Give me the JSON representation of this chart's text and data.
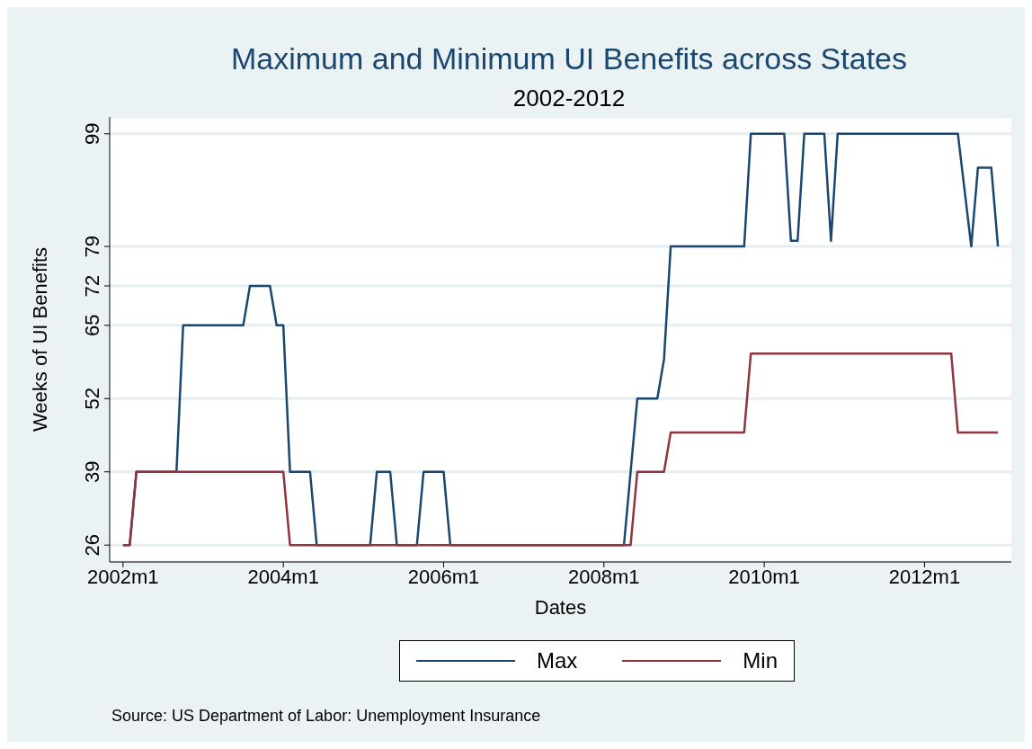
{
  "chart_data": {
    "type": "line",
    "title": "Maximum and Minimum UI Benefits across States",
    "subtitle": "2002-2012",
    "xlabel": "Dates",
    "ylabel": "Weeks of UI Benefits",
    "series": [
      {
        "name": "Max",
        "color": "#1a476f",
        "x": [
          "2002-01",
          "2002-02",
          "2002-03",
          "2002-09",
          "2002-10",
          "2003-07",
          "2003-08",
          "2003-11",
          "2003-12",
          "2004-01",
          "2004-02",
          "2004-05",
          "2004-06",
          "2005-02",
          "2005-03",
          "2005-05",
          "2005-06",
          "2005-09",
          "2005-10",
          "2006-01",
          "2006-02",
          "2008-04",
          "2008-05",
          "2008-06",
          "2008-09",
          "2008-10",
          "2008-11",
          "2009-10",
          "2009-11",
          "2010-04",
          "2010-05",
          "2010-06",
          "2010-07",
          "2010-10",
          "2010-11",
          "2010-12",
          "2012-06",
          "2012-07",
          "2012-08",
          "2012-09",
          "2012-11",
          "2012-12"
        ],
        "values": [
          26,
          26,
          39,
          39,
          65,
          65,
          72,
          72,
          65,
          65,
          39,
          39,
          26,
          26,
          39,
          39,
          26,
          26,
          39,
          39,
          26,
          26,
          39,
          52,
          52,
          59,
          79,
          79,
          99,
          99,
          80,
          80,
          99,
          99,
          80,
          99,
          99,
          89,
          79,
          93,
          93,
          79
        ]
      },
      {
        "name": "Min",
        "color": "#90353b",
        "x": [
          "2002-01",
          "2002-02",
          "2002-03",
          "2004-01",
          "2004-02",
          "2008-05",
          "2008-06",
          "2008-10",
          "2008-11",
          "2009-10",
          "2009-11",
          "2012-05",
          "2012-06",
          "2012-12"
        ],
        "values": [
          26,
          26,
          39,
          39,
          26,
          26,
          39,
          39,
          46,
          46,
          60,
          60,
          46,
          46
        ]
      }
    ],
    "xlim": [
      "2001-11",
      "2013-02"
    ],
    "xticks": [
      {
        "value": "2002-01",
        "label": "2002m1"
      },
      {
        "value": "2004-01",
        "label": "2004m1"
      },
      {
        "value": "2006-01",
        "label": "2006m1"
      },
      {
        "value": "2008-01",
        "label": "2008m1"
      },
      {
        "value": "2010-01",
        "label": "2010m1"
      },
      {
        "value": "2012-01",
        "label": "2012m1"
      }
    ],
    "ylim": [
      23,
      102
    ],
    "yticks": [
      26,
      39,
      52,
      65,
      72,
      79,
      99
    ],
    "grid": "y",
    "legend": "bottom",
    "annotations": [
      "Source: US Department of Labor: Unemployment Insurance"
    ]
  }
}
